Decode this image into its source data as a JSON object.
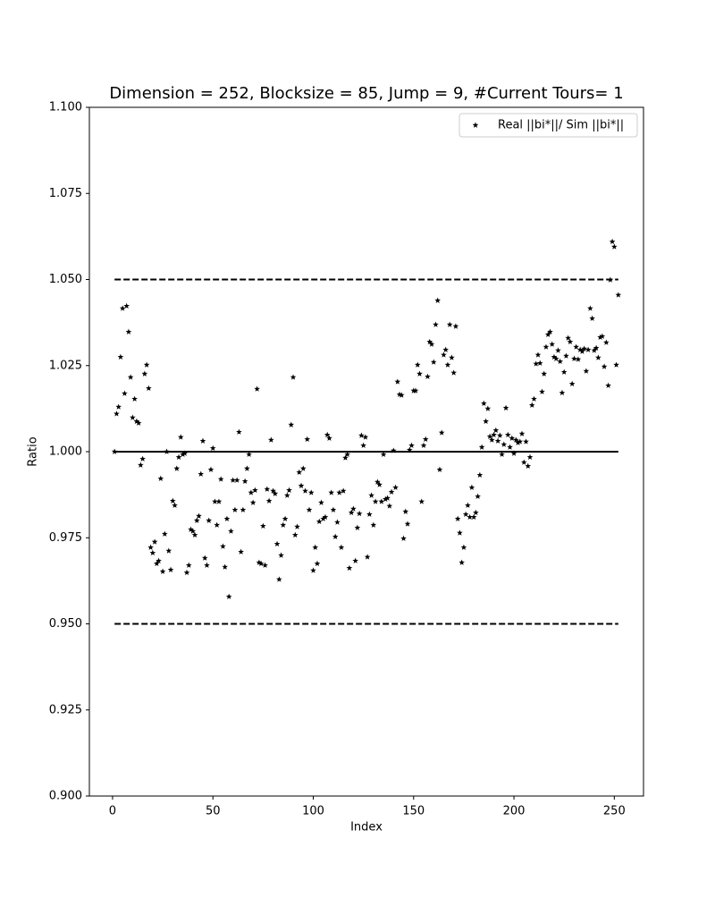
{
  "chart_data": {
    "type": "scatter",
    "title": "Dimension = 252, Blocksize = 85, Jump = 9, #Current Tours= 1",
    "x_label": "Index",
    "y_label": "Ratio",
    "legend_position": "upper right",
    "marker": "star",
    "xlim": [
      -11.55,
      264.55
    ],
    "xticks": [
      0,
      50,
      100,
      150,
      200,
      250
    ],
    "ylim": [
      0.9,
      1.1
    ],
    "yticks": [
      {
        "value": 0.9,
        "label": "0.900"
      },
      {
        "value": 0.925,
        "label": "0.925"
      },
      {
        "value": 0.95,
        "label": "0.950"
      },
      {
        "value": 0.975,
        "label": "0.975"
      },
      {
        "value": 1.0,
        "label": "1.000"
      },
      {
        "value": 1.025,
        "label": "1.025"
      },
      {
        "value": 1.05,
        "label": "1.050"
      },
      {
        "value": 1.075,
        "label": "1.075"
      },
      {
        "value": 1.1,
        "label": "1.100"
      }
    ],
    "hlines": [
      {
        "value": 1.0,
        "style": "solid",
        "color": "#000000"
      },
      {
        "value": 1.05,
        "style": "dashed",
        "color": "#000000"
      },
      {
        "value": 0.95,
        "style": "dashed",
        "color": "#000000"
      }
    ],
    "series": [
      {
        "name": "Real ||bi*||/ Sim ||bi*||",
        "color": "#000000",
        "x": [
          1,
          2,
          3,
          4,
          5,
          6,
          7,
          8,
          9,
          10,
          11,
          12,
          13,
          14,
          15,
          16,
          17,
          18,
          19,
          20,
          21,
          22,
          23,
          24,
          25,
          26,
          27,
          28,
          29,
          30,
          31,
          32,
          33,
          34,
          35,
          36,
          37,
          38,
          39,
          40,
          41,
          42,
          43,
          44,
          45,
          46,
          47,
          48,
          49,
          50,
          51,
          52,
          53,
          54,
          55,
          56,
          57,
          58,
          59,
          60,
          61,
          62,
          63,
          64,
          65,
          66,
          67,
          68,
          69,
          70,
          71,
          72,
          73,
          74,
          75,
          76,
          77,
          78,
          79,
          80,
          81,
          82,
          83,
          84,
          85,
          86,
          87,
          88,
          89,
          90,
          91,
          92,
          93,
          94,
          95,
          96,
          97,
          98,
          99,
          100,
          101,
          102,
          103,
          104,
          105,
          106,
          107,
          108,
          109,
          110,
          111,
          112,
          113,
          114,
          115,
          116,
          117,
          118,
          119,
          120,
          121,
          122,
          123,
          124,
          125,
          126,
          127,
          128,
          129,
          130,
          131,
          132,
          133,
          134,
          135,
          136,
          137,
          138,
          139,
          140,
          141,
          142,
          143,
          144,
          145,
          146,
          147,
          148,
          149,
          150,
          151,
          152,
          153,
          154,
          155,
          156,
          157,
          158,
          159,
          160,
          161,
          162,
          163,
          164,
          165,
          166,
          167,
          168,
          169,
          170,
          171,
          172,
          173,
          174,
          175,
          176,
          177,
          178,
          179,
          180,
          181,
          182,
          183,
          184,
          185,
          186,
          187,
          188,
          189,
          190,
          191,
          192,
          193,
          194,
          195,
          196,
          197,
          198,
          199,
          200,
          201,
          202,
          203,
          204,
          205,
          206,
          207,
          208,
          209,
          210,
          211,
          212,
          213,
          214,
          215,
          216,
          217,
          218,
          219,
          220,
          221,
          222,
          223,
          224,
          225,
          226,
          227,
          228,
          229,
          230,
          231,
          232,
          233,
          234,
          235,
          236,
          237,
          238,
          239,
          240,
          241,
          242,
          243,
          244,
          245,
          246,
          247,
          248,
          249,
          250,
          251,
          252
        ],
        "values": [
          1.0,
          1.011,
          1.013,
          1.0275,
          1.0416,
          1.0169,
          1.0423,
          1.0348,
          1.0216,
          1.0099,
          1.0153,
          1.0088,
          1.0083,
          0.9961,
          0.9979,
          1.0226,
          1.0252,
          1.0184,
          0.9722,
          0.9706,
          0.9738,
          0.9675,
          0.9683,
          0.9922,
          0.9652,
          0.9761,
          1.0,
          0.9712,
          0.9657,
          0.9857,
          0.9844,
          0.9951,
          0.9984,
          1.0042,
          0.9992,
          0.9995,
          0.9649,
          0.967,
          0.9774,
          0.9769,
          0.9758,
          0.98,
          0.9813,
          0.9935,
          1.0031,
          0.9691,
          0.967,
          0.98,
          0.9948,
          1.001,
          0.9855,
          0.9787,
          0.9855,
          0.992,
          0.9725,
          0.9665,
          0.9805,
          0.9579,
          0.9769,
          0.9917,
          0.9831,
          0.9917,
          1.0057,
          0.9709,
          0.9831,
          0.9914,
          0.9951,
          0.9992,
          0.9881,
          0.9852,
          0.9888,
          1.0182,
          0.9678,
          0.9675,
          0.9784,
          0.967,
          0.9891,
          0.9857,
          1.0034,
          0.9886,
          0.9878,
          0.9732,
          0.9629,
          0.9699,
          0.9787,
          0.9805,
          0.9873,
          0.9888,
          1.0078,
          1.0216,
          0.9758,
          0.9782,
          0.994,
          0.9901,
          0.9951,
          0.9886,
          1.0036,
          0.9831,
          0.9881,
          0.9655,
          0.9722,
          0.9675,
          0.9797,
          0.9852,
          0.9805,
          0.981,
          1.0049,
          1.0039,
          0.9881,
          0.9831,
          0.9753,
          0.9795,
          0.9881,
          0.9722,
          0.9886,
          0.9982,
          0.9992,
          0.9662,
          0.9823,
          0.9834,
          0.9683,
          0.9779,
          0.982,
          1.0047,
          1.0018,
          1.0042,
          0.9694,
          0.9818,
          0.9873,
          0.9787,
          0.9855,
          0.9912,
          0.9904,
          0.9855,
          0.9992,
          0.9862,
          0.9865,
          0.9842,
          0.9883,
          1.0003,
          0.9896,
          1.0203,
          1.0166,
          1.0164,
          0.9748,
          0.9826,
          0.979,
          1.0005,
          1.0018,
          1.0177,
          1.0177,
          1.0252,
          1.0226,
          0.9855,
          1.0018,
          1.0036,
          1.0218,
          1.0319,
          1.0312,
          1.026,
          1.0369,
          1.0439,
          0.9948,
          1.0055,
          1.0281,
          1.0296,
          1.0252,
          1.0369,
          1.0273,
          1.0229,
          1.0364,
          0.9805,
          0.9764,
          0.9678,
          0.9722,
          0.9818,
          0.9844,
          0.981,
          0.9896,
          0.981,
          0.9823,
          0.987,
          0.9932,
          1.0013,
          1.014,
          1.0088,
          1.0125,
          1.0044,
          1.0034,
          1.0049,
          1.0062,
          1.0031,
          1.0047,
          0.9992,
          1.0021,
          1.0127,
          1.0049,
          1.0013,
          1.0039,
          0.9995,
          1.0034,
          1.0026,
          1.0029,
          1.0052,
          0.9969,
          1.0029,
          0.9958,
          0.9984,
          1.0135,
          1.0153,
          1.0255,
          1.0281,
          1.0257,
          1.0174,
          1.0226,
          1.0304,
          1.034,
          1.0348,
          1.0312,
          1.0275,
          1.027,
          1.0294,
          1.0262,
          1.0171,
          1.0231,
          1.0278,
          1.033,
          1.0319,
          1.0197,
          1.027,
          1.0304,
          1.0268,
          1.0296,
          1.0291,
          1.0299,
          1.0234,
          1.0296,
          1.0416,
          1.0387,
          1.0294,
          1.0301,
          1.0273,
          1.0332,
          1.0335,
          1.0247,
          1.0317,
          1.0192,
          1.0499,
          1.061,
          1.0595,
          1.0252,
          1.0455
        ]
      }
    ]
  }
}
